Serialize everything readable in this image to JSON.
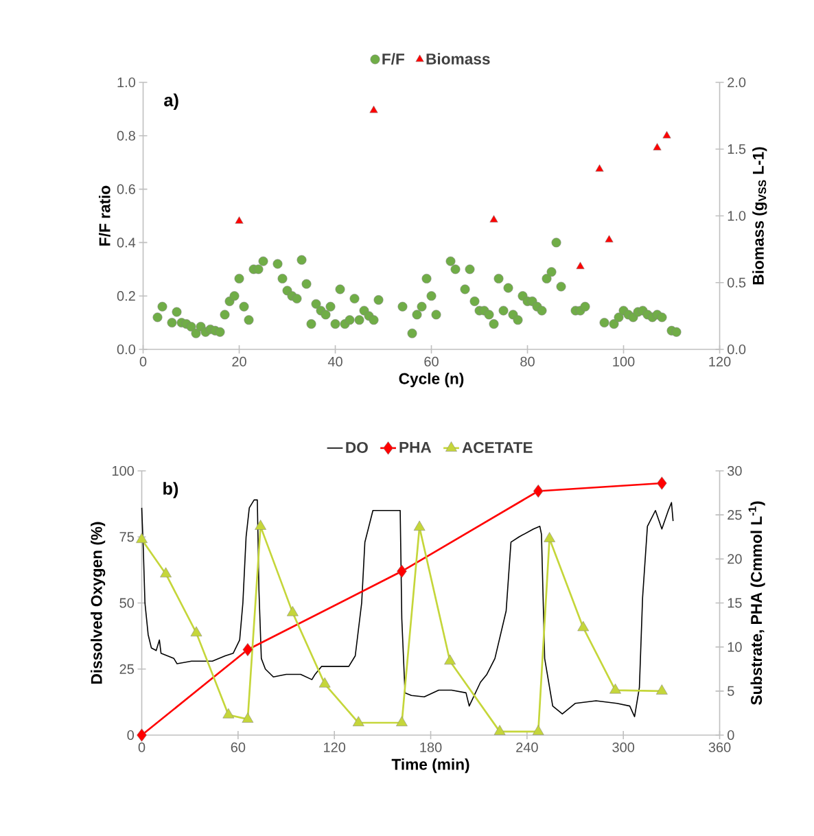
{
  "chart_data": [
    {
      "type": "scatter",
      "xlabel": "Cycle (n)",
      "ylabel": "F/F ratio",
      "y2label": "Biomass (g$_{VSS}$ L-1)",
      "legend": "top",
      "annotations": [
        "a)"
      ],
      "xlim": [
        0,
        120
      ],
      "xticks": [
        0,
        20,
        40,
        60,
        80,
        100,
        120
      ],
      "ylim": [
        0,
        1
      ],
      "yticks": [
        {
          "value": 0,
          "label": "0.0"
        },
        {
          "value": 0.2,
          "label": "0.2"
        },
        {
          "value": 0.4,
          "label": "0.4"
        },
        {
          "value": 0.6,
          "label": "0.6"
        },
        {
          "value": 0.8,
          "label": "0.8"
        },
        {
          "value": 1,
          "label": "1.0"
        }
      ],
      "y2lim": [
        0,
        2
      ],
      "y2ticks": [
        {
          "value": 0,
          "label": "0.0"
        },
        {
          "value": 0.5,
          "label": "0.5"
        },
        {
          "value": 1,
          "label": "1.0"
        },
        {
          "value": 1.5,
          "label": "1.5"
        },
        {
          "value": 2,
          "label": "2.0"
        }
      ],
      "series": [
        {
          "name": "F/F",
          "color": "#70ad47",
          "marker": "circle",
          "x": [
            3,
            4,
            6,
            7,
            8,
            9,
            10,
            11,
            12,
            13,
            14,
            15,
            16,
            17,
            18,
            19,
            20,
            21,
            22,
            23,
            24,
            25,
            28,
            29,
            30,
            31,
            32,
            33,
            34,
            35,
            36,
            37,
            38,
            39,
            40,
            41,
            42,
            43,
            44,
            45,
            46,
            47,
            48,
            49,
            54,
            56,
            57,
            58,
            59,
            60,
            61,
            64,
            65,
            67,
            68,
            69,
            70,
            71,
            72,
            73,
            74,
            75,
            76,
            77,
            78,
            79,
            80,
            81,
            82,
            83,
            84,
            85,
            86,
            87,
            90,
            91,
            92,
            96,
            98,
            99,
            100,
            101,
            102,
            103,
            104,
            105,
            106,
            107,
            108,
            110,
            111
          ],
          "values": [
            0.12,
            0.16,
            0.1,
            0.14,
            0.1,
            0.095,
            0.085,
            0.06,
            0.085,
            0.065,
            0.075,
            0.07,
            0.065,
            0.13,
            0.18,
            0.2,
            0.265,
            0.16,
            0.11,
            0.3,
            0.3,
            0.33,
            0.32,
            0.265,
            0.22,
            0.2,
            0.19,
            0.335,
            0.245,
            0.095,
            0.17,
            0.145,
            0.13,
            0.16,
            0.095,
            0.225,
            0.095,
            0.11,
            0.19,
            0.11,
            0.145,
            0.125,
            0.11,
            0.185,
            0.16,
            0.06,
            0.13,
            0.16,
            0.265,
            0.2,
            0.13,
            0.33,
            0.3,
            0.225,
            0.3,
            0.18,
            0.145,
            0.145,
            0.13,
            0.095,
            0.265,
            0.145,
            0.23,
            0.13,
            0.11,
            0.2,
            0.18,
            0.18,
            0.16,
            0.145,
            0.265,
            0.29,
            0.4,
            0.235,
            0.145,
            0.145,
            0.16,
            0.1,
            0.095,
            0.12,
            0.145,
            0.13,
            0.12,
            0.14,
            0.145,
            0.13,
            0.12,
            0.13,
            0.12,
            0.07,
            0.065
          ]
        },
        {
          "name": "Biomass",
          "color": "#ff0000",
          "marker": "triangle",
          "axis": "y2",
          "x": [
            20,
            48,
            73,
            91,
            95,
            97,
            107,
            109
          ],
          "values": [
            0.96,
            1.79,
            0.97,
            0.62,
            1.35,
            0.82,
            1.51,
            1.6
          ]
        }
      ]
    },
    {
      "type": "line",
      "xlabel": "Time (min)",
      "ylabel": "Dissolved Oxygen (%)",
      "y2label": "Substrate, PHA (Cmmol L$^{-1}$)",
      "legend": "top",
      "annotations": [
        "b)"
      ],
      "xlim": [
        0,
        360
      ],
      "xticks": [
        0,
        60,
        120,
        180,
        240,
        300,
        360
      ],
      "ylim": [
        0,
        100
      ],
      "yticks": [
        0,
        25,
        50,
        75,
        100
      ],
      "y2lim": [
        0,
        30
      ],
      "y2ticks": [
        0,
        5,
        10,
        15,
        20,
        25,
        30
      ],
      "series": [
        {
          "name": "DO",
          "color": "#000000",
          "marker": "none",
          "x": [
            0,
            1,
            2,
            4,
            6,
            9,
            11,
            12,
            20,
            22,
            31,
            44,
            52,
            57,
            61,
            63,
            65,
            67,
            70,
            72,
            73,
            74.5,
            77,
            82,
            90,
            99,
            106,
            108,
            112,
            120,
            129,
            133,
            137,
            139,
            144,
            150,
            159,
            161,
            162,
            164,
            168,
            176,
            185,
            193,
            202,
            204,
            211,
            215,
            220,
            227,
            230,
            235,
            244,
            248,
            249,
            251,
            256,
            262,
            270,
            283,
            296,
            304,
            307,
            310,
            312,
            315,
            320,
            324,
            328,
            330,
            331
          ],
          "values": [
            86,
            70,
            50,
            38,
            33,
            32,
            36,
            31,
            29,
            27,
            28,
            28,
            30,
            31,
            36,
            50,
            75,
            86,
            89,
            89,
            55,
            29,
            25,
            22,
            23,
            23,
            21,
            23,
            26,
            26,
            26,
            30,
            50,
            73,
            85,
            85,
            85,
            85,
            44,
            16,
            15,
            14.5,
            17,
            17,
            16,
            11,
            20,
            23,
            29,
            47,
            73,
            75,
            78,
            79,
            76,
            29,
            11,
            8,
            12,
            13,
            12,
            11,
            7,
            18,
            52,
            79,
            85,
            78,
            85,
            88,
            81
          ]
        },
        {
          "name": "PHA",
          "color": "#ff0000",
          "marker": "diamond",
          "axis": "y2",
          "x": [
            0,
            66,
            162,
            247,
            324
          ],
          "values": [
            0,
            9.7,
            18.6,
            27.7,
            28.6
          ]
        },
        {
          "name": "ACETATE",
          "color": "#c5d63a",
          "marker": "triangle",
          "axis": "y2",
          "x": [
            0,
            15,
            34,
            54,
            66,
            74,
            94,
            114,
            135,
            162,
            173,
            192,
            223,
            247,
            254,
            275,
            295,
            324
          ],
          "values": [
            22.2,
            18.3,
            11.6,
            2.3,
            1.8,
            23.7,
            13.9,
            5.8,
            1.4,
            1.4,
            23.6,
            8.4,
            0.4,
            0.4,
            22.3,
            12.2,
            5.1,
            5.0
          ]
        }
      ]
    }
  ]
}
